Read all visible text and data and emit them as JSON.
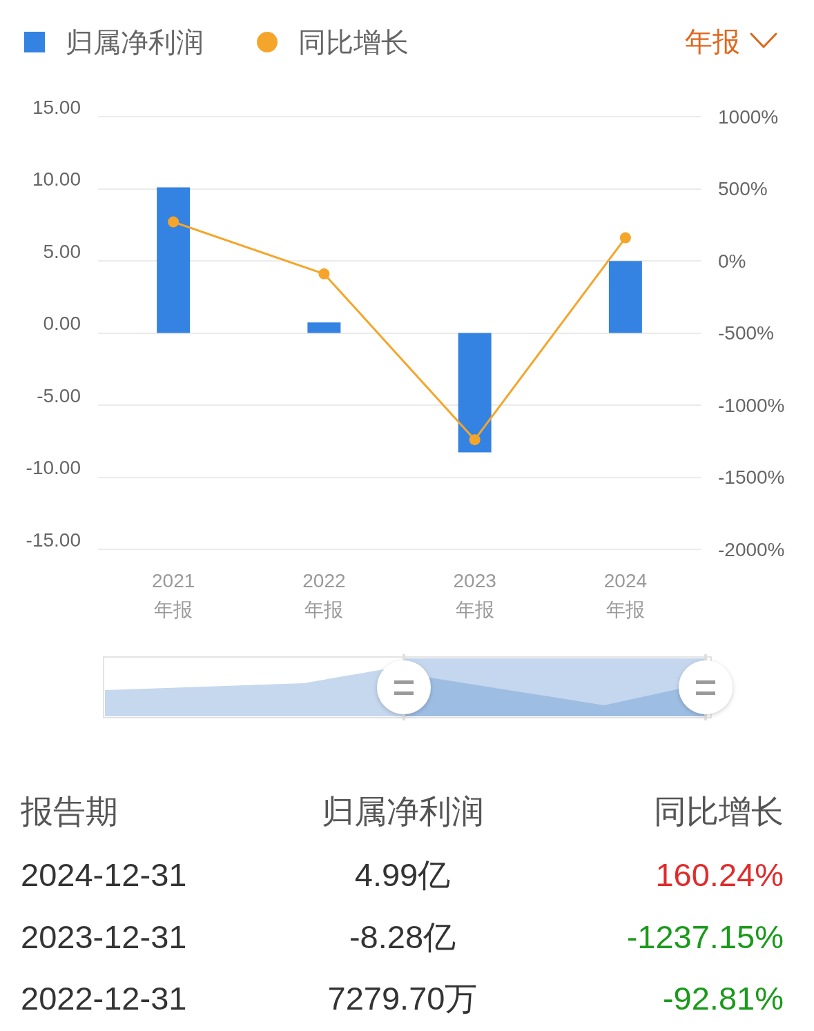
{
  "chart_data": [
    {
      "type": "bar",
      "categories": [
        "2021\n年报",
        "2022\n年报",
        "2023\n年报",
        "2024\n年报"
      ],
      "series": [
        {
          "name": "归属净利润",
          "color": "#3482e2",
          "values": [
            10.1,
            0.73,
            -8.28,
            4.99
          ]
        },
        {
          "name": "同比增长",
          "type": "line",
          "axis": "y2",
          "color": "#f5a52a",
          "values": [
            270,
            -90,
            -1240,
            160
          ]
        }
      ],
      "ylim": [
        -15,
        15
      ],
      "yticks": [
        {
          "value": -15,
          "label": "-15.00"
        },
        {
          "value": -10,
          "label": "-10.00"
        },
        {
          "value": -5,
          "label": "-5.00"
        },
        {
          "value": 0,
          "label": "0.00"
        },
        {
          "value": 5,
          "label": "5.00"
        },
        {
          "value": 10,
          "label": "10.00"
        },
        {
          "value": 15,
          "label": "15.00"
        }
      ],
      "y2lim": [
        -2000,
        1000
      ],
      "y2ticks": [
        {
          "value": -2000,
          "label": "-2000%"
        },
        {
          "value": -1500,
          "label": "-1500%"
        },
        {
          "value": -1000,
          "label": "-1000%"
        },
        {
          "value": -500,
          "label": "-500%"
        },
        {
          "value": 0,
          "label": "0%"
        },
        {
          "value": 500,
          "label": "500%"
        },
        {
          "value": 1000,
          "label": "1000%"
        }
      ],
      "grid": "y",
      "legend": "top left",
      "marker": "circle",
      "line_style": "solid",
      "annotations": [
        "年报"
      ]
    },
    {
      "type": "other",
      "annotations": [
        "报告期",
        "归属净利润",
        "同比增长",
        "2024-12-31",
        "4.99亿",
        "160.24%",
        "2023-12-31",
        "-8.28亿",
        "-1237.15%",
        "2022-12-31",
        "7279.70万",
        "-92.81%"
      ],
      "colors": [
        "#555555",
        "#555555",
        "#555555",
        "#333333",
        "#333333",
        "#e02b2b",
        "#333333",
        "#333333",
        "#1a9a1a",
        "#333333",
        "#333333",
        "#1a9a1a"
      ]
    }
  ]
}
